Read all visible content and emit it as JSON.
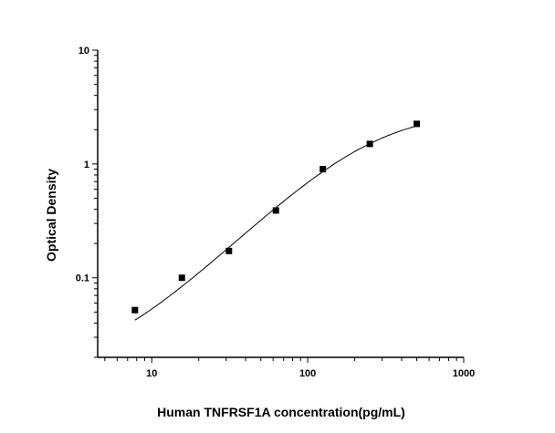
{
  "chart_data": {
    "type": "scatter",
    "title": "",
    "xlabel": "Human TNFRSF1A concentration(pg/mL)",
    "ylabel": "Optical Density",
    "x_scale": "log",
    "y_scale": "log",
    "xlim": [
      4.5,
      1000
    ],
    "ylim": [
      0.02,
      10
    ],
    "x_ticks": [
      {
        "value": 10,
        "label": "10"
      },
      {
        "value": 100,
        "label": "100"
      },
      {
        "value": 1000,
        "label": "1000"
      }
    ],
    "y_ticks": [
      {
        "value": 0.1,
        "label": "0.1"
      },
      {
        "value": 1,
        "label": "1"
      },
      {
        "value": 10,
        "label": "10"
      }
    ],
    "grid": false,
    "series": [
      {
        "marker": "square",
        "color": "#000000",
        "x": [
          7.8,
          15.6,
          31.25,
          62.5,
          125,
          250,
          500
        ],
        "y": [
          0.052,
          0.1,
          0.172,
          0.39,
          0.9,
          1.5,
          2.25
        ]
      }
    ],
    "fit_curve": {
      "model": "four-parameter logistic",
      "color": "#000000",
      "x_range": [
        7.8,
        500
      ],
      "params": {
        "A": 0.015,
        "B": 1.35,
        "C": 250,
        "D": 3.0
      }
    }
  }
}
